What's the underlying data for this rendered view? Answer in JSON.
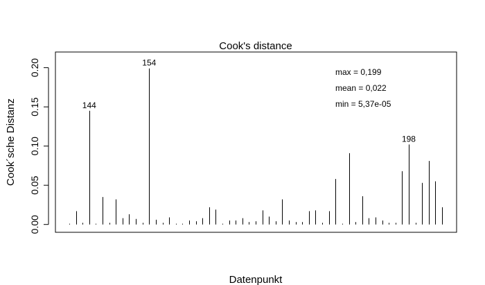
{
  "chart_data": {
    "type": "bar",
    "title": "Cook's distance",
    "xlabel": "Datenpunkt",
    "ylabel": "Cook´sche Distanz",
    "ylim": [
      -0.01,
      0.22
    ],
    "yticks": [
      0.0,
      0.05,
      0.1,
      0.15,
      0.2
    ],
    "ytick_labels": [
      "0.00",
      "0.05",
      "0.10",
      "0.15",
      "0.20"
    ],
    "grid": false,
    "bar_color": "#000000",
    "values": [
      0.001,
      0.017,
      0.002,
      0.145,
      0.001,
      0.035,
      0.002,
      0.032,
      0.008,
      0.013,
      0.007,
      0.002,
      0.199,
      0.006,
      0.002,
      0.009,
      0.001,
      0.001,
      0.005,
      0.004,
      0.008,
      0.022,
      0.019,
      0.001,
      0.005,
      0.005,
      0.008,
      0.003,
      0.004,
      0.018,
      0.01,
      0.004,
      0.032,
      0.005,
      0.003,
      0.003,
      0.017,
      0.018,
      0.002,
      0.017,
      0.058,
      0.001,
      0.091,
      0.003,
      0.036,
      0.008,
      0.009,
      0.005,
      0.002,
      0.002,
      0.068,
      0.102,
      0.002,
      0.053,
      0.081,
      0.055,
      0.022
    ],
    "point_labels": [
      {
        "index": 3,
        "label": "144"
      },
      {
        "index": 12,
        "label": "154"
      },
      {
        "index": 51,
        "label": "198"
      }
    ],
    "stats_text": [
      "max = 0,199",
      "mean = 0,022",
      "min = 5,37e-05"
    ]
  }
}
